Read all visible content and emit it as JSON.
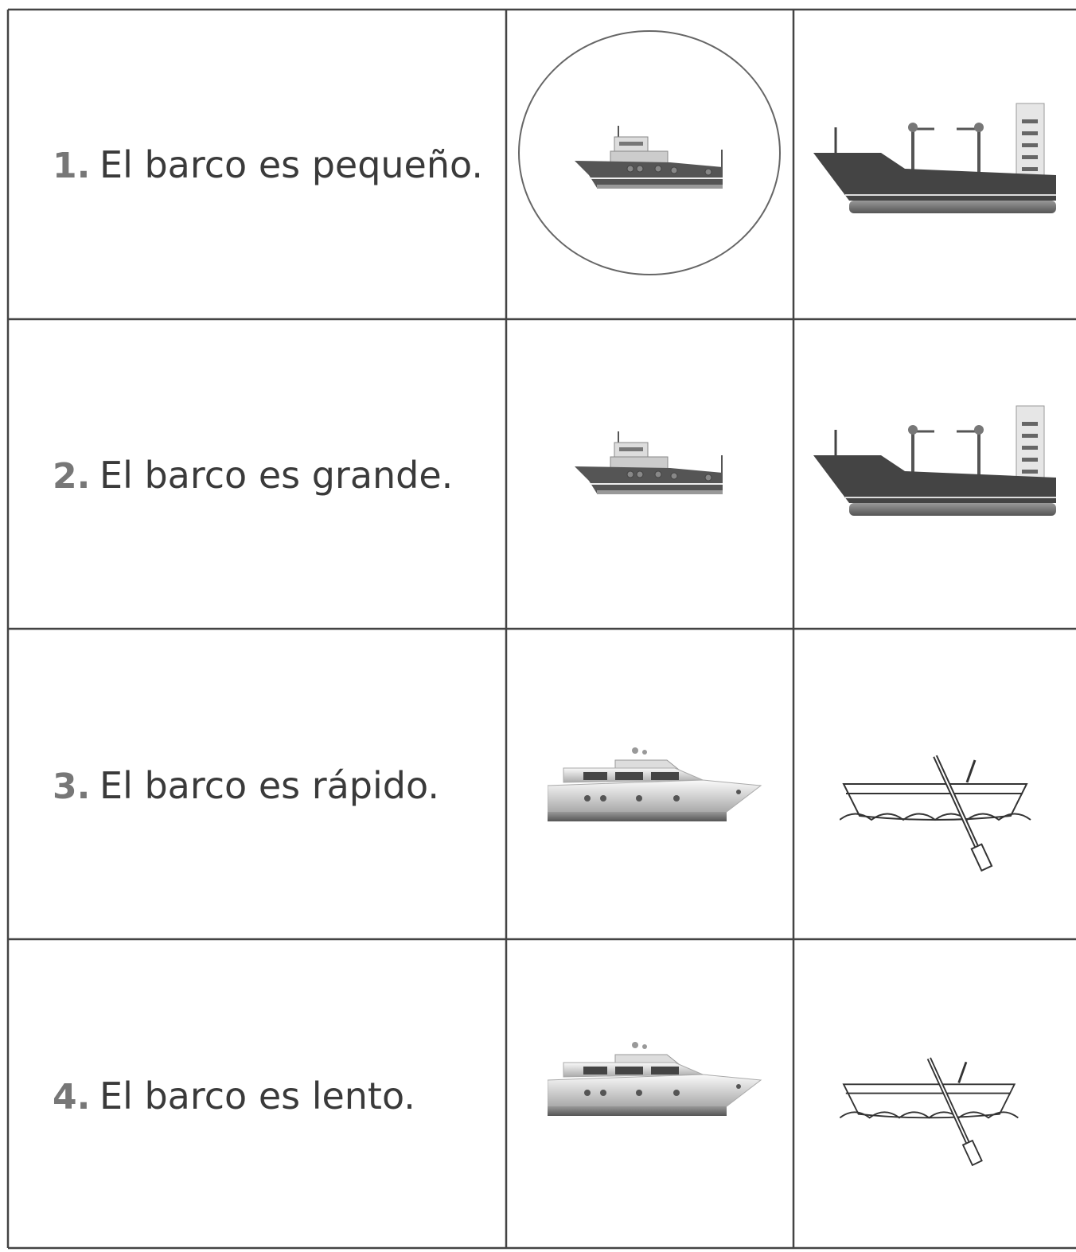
{
  "rows": [
    {
      "number": "1.",
      "text": "El barco es pequeño."
    },
    {
      "number": "2.",
      "text": "El barco es grande."
    },
    {
      "number": "3.",
      "text": "El barco es rápido."
    },
    {
      "number": "4.",
      "text": "El barco es lento."
    }
  ]
}
